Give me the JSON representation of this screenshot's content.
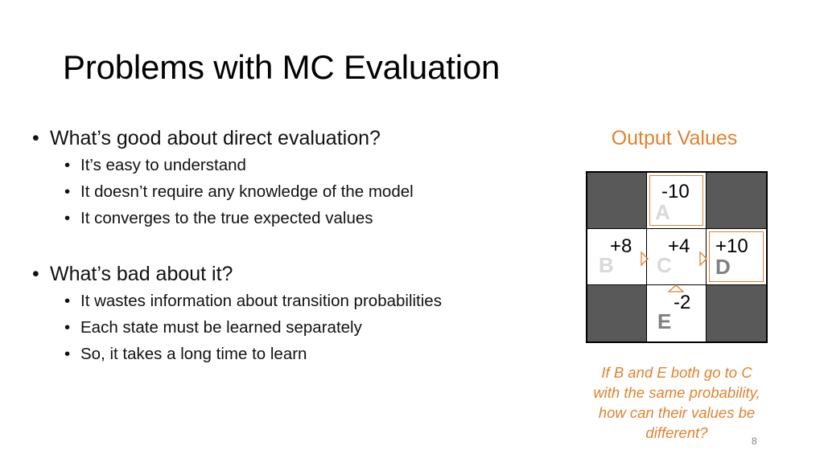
{
  "slide": {
    "title": "Problems with MC Evaluation",
    "page_number": "8"
  },
  "bullets": {
    "good": {
      "heading": "What’s good about direct evaluation?",
      "items": [
        "It’s easy to understand",
        "It doesn’t require any knowledge of the model",
        "It converges to the true expected values"
      ]
    },
    "bad": {
      "heading": "What’s bad about it?",
      "items": [
        "It wastes information about transition probabilities",
        "Each state must be learned separately",
        "So, it takes a long time to learn"
      ]
    }
  },
  "gridworld": {
    "title": "Output Values",
    "states": {
      "A": {
        "label": "A",
        "value": "-10"
      },
      "B": {
        "label": "B",
        "value": "+8"
      },
      "C": {
        "label": "C",
        "value": "+4"
      },
      "D": {
        "label": "D",
        "value": "+10"
      },
      "E": {
        "label": "E",
        "value": "-2"
      }
    },
    "caption": [
      "If B and E both go to C",
      "with the same probability,",
      "how can their values be",
      "different?"
    ],
    "colors": {
      "accent": "#e0822f",
      "wall": "#595959",
      "label_light": "#d9d9d9",
      "label_dim": "#7f7f7f"
    }
  }
}
